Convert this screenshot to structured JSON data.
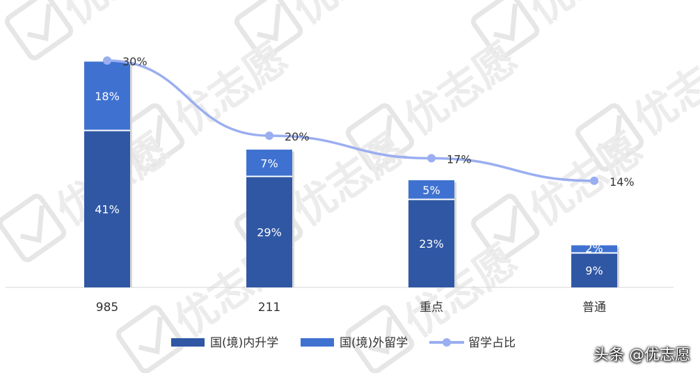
{
  "chart_data": {
    "type": "bar",
    "stacked": true,
    "categories": [
      "985",
      "211",
      "重点",
      "普通"
    ],
    "series": [
      {
        "name": "国(境)内升学",
        "type": "bar",
        "values": [
          41,
          29,
          23,
          9
        ],
        "labels": [
          "41%",
          "29%",
          "23%",
          "9%"
        ],
        "color": "#2f57a4"
      },
      {
        "name": "国(境)外留学",
        "type": "bar",
        "values": [
          18,
          7,
          5,
          2
        ],
        "labels": [
          "18%",
          "7%",
          "5%",
          "2%"
        ],
        "color": "#3f72d0"
      },
      {
        "name": "留学占比",
        "type": "line",
        "values": [
          30,
          20,
          17,
          14
        ],
        "labels": [
          "30%",
          "20%",
          "17%",
          "14%"
        ],
        "color": "#9aaef0"
      }
    ],
    "legend_position": "bottom",
    "grid": false
  },
  "watermark": {
    "brand": "优志愿",
    "caption": "头条 @优志愿"
  }
}
